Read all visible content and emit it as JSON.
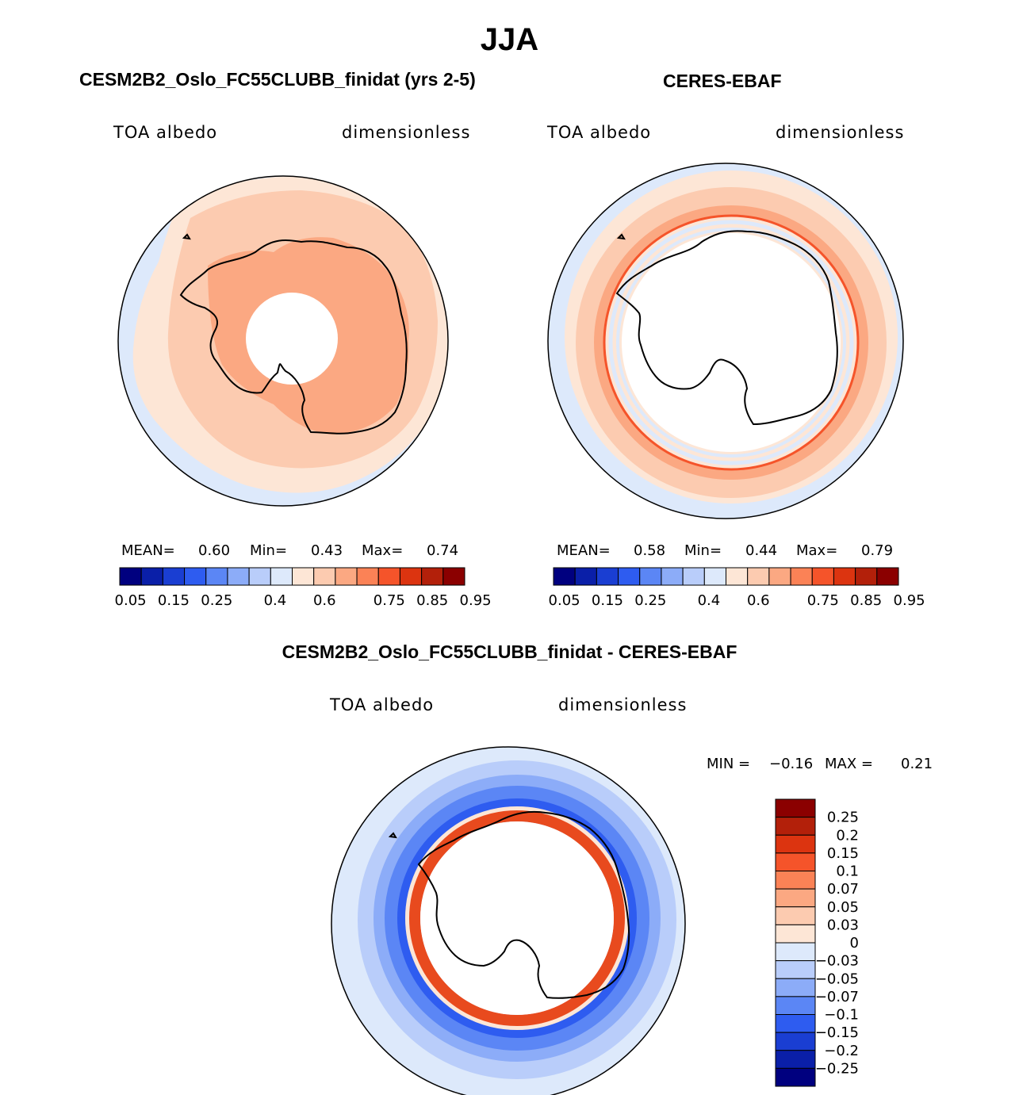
{
  "page": {
    "title": "JJA"
  },
  "panels": [
    {
      "title": "CESM2B2_Oslo_FC55CLUBB_finidat (yrs 2-5)",
      "subtitle_left": "TOA albedo",
      "subtitle_right": "dimensionless",
      "stats": {
        "mean_label": "MEAN=",
        "mean": "0.60",
        "min_label": "Min=",
        "min": "0.43",
        "max_label": "Max=",
        "max": "0.74"
      }
    },
    {
      "title": "CERES-EBAF",
      "subtitle_left": "TOA albedo",
      "subtitle_right": "dimensionless",
      "stats": {
        "mean_label": "MEAN=",
        "mean": "0.58",
        "min_label": "Min=",
        "min": "0.44",
        "max_label": "Max=",
        "max": "0.79"
      }
    },
    {
      "title": "CESM2B2_Oslo_FC55CLUBB_finidat - CERES-EBAF",
      "subtitle_left": "TOA albedo",
      "subtitle_right": "dimensionless",
      "stats": {
        "min_label": "MIN =",
        "min": "−0.16",
        "max_label": "MAX =",
        "max": "0.21"
      }
    }
  ],
  "chart_data": [
    {
      "type": "heatmap",
      "projection": "south polar stereographic",
      "title": "CESM2B2_Oslo_FC55CLUBB_finidat (yrs 2-5)",
      "variable": "TOA albedo",
      "units": "dimensionless",
      "mean": 0.6,
      "min": 0.43,
      "max": 0.74,
      "colorbar": {
        "levels": [
          0.05,
          0.1,
          0.15,
          0.2,
          0.25,
          0.3,
          0.35,
          0.4,
          0.5,
          0.6,
          0.65,
          0.7,
          0.75,
          0.8,
          0.85,
          0.9,
          0.95
        ],
        "tick_labels": [
          "0.05",
          "0.15",
          "0.25",
          "0.4",
          "0.6",
          "0.75",
          "0.85",
          "0.95"
        ],
        "colors": [
          "#00007f",
          "#0a1fa8",
          "#1a3ed2",
          "#2e5cf0",
          "#5b86f5",
          "#8cacf8",
          "#b9cdfa",
          "#dde9fb",
          "#fde6d6",
          "#fccbb0",
          "#fba882",
          "#fb8256",
          "#f5542a",
          "#dc3410",
          "#b3200a",
          "#8b0000"
        ]
      }
    },
    {
      "type": "heatmap",
      "projection": "south polar stereographic",
      "title": "CERES-EBAF",
      "variable": "TOA albedo",
      "units": "dimensionless",
      "mean": 0.58,
      "min": 0.44,
      "max": 0.79,
      "colorbar": {
        "levels": [
          0.05,
          0.1,
          0.15,
          0.2,
          0.25,
          0.3,
          0.35,
          0.4,
          0.5,
          0.6,
          0.65,
          0.7,
          0.75,
          0.8,
          0.85,
          0.9,
          0.95
        ],
        "tick_labels": [
          "0.05",
          "0.15",
          "0.25",
          "0.4",
          "0.6",
          "0.75",
          "0.85",
          "0.95"
        ],
        "colors": [
          "#00007f",
          "#0a1fa8",
          "#1a3ed2",
          "#2e5cf0",
          "#5b86f5",
          "#8cacf8",
          "#b9cdfa",
          "#dde9fb",
          "#fde6d6",
          "#fccbb0",
          "#fba882",
          "#fb8256",
          "#f5542a",
          "#dc3410",
          "#b3200a",
          "#8b0000"
        ]
      }
    },
    {
      "type": "heatmap",
      "projection": "south polar stereographic",
      "title": "CESM2B2_Oslo_FC55CLUBB_finidat - CERES-EBAF",
      "variable": "TOA albedo",
      "units": "dimensionless",
      "min": -0.16,
      "max": 0.21,
      "colorbar": {
        "orientation": "vertical",
        "tick_labels_top_to_bottom": [
          "0.25",
          "0.2",
          "0.15",
          "0.1",
          "0.07",
          "0.05",
          "0.03",
          "0",
          "−0.03",
          "−0.05",
          "−0.07",
          "−0.1",
          "−0.15",
          "−0.2",
          "−0.25"
        ],
        "colors_top_to_bottom": [
          "#8b0000",
          "#b3200a",
          "#dc3410",
          "#f5542a",
          "#fb8256",
          "#fba882",
          "#fccbb0",
          "#fde6d6",
          "#dde9fb",
          "#b9cdfa",
          "#8cacf8",
          "#5b86f5",
          "#2e5cf0",
          "#1a3ed2",
          "#0a1fa8",
          "#00007f"
        ]
      }
    }
  ]
}
